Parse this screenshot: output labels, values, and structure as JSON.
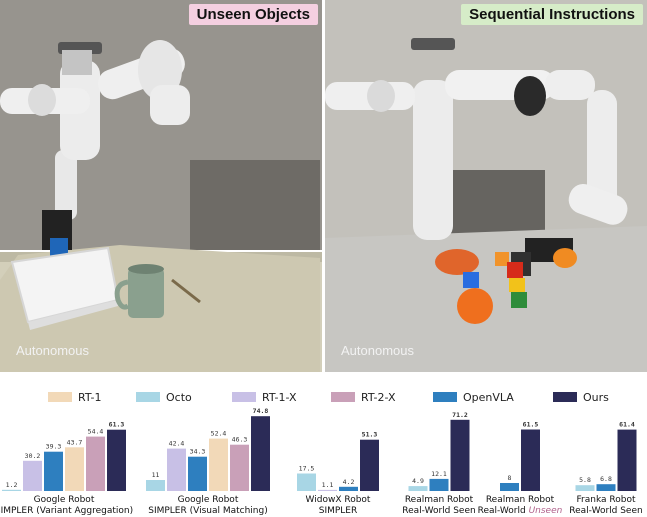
{
  "panels": [
    {
      "badge": "Unseen Objects",
      "caption": "Autonomous"
    },
    {
      "badge": "Sequential Instructions",
      "caption": "Autonomous"
    }
  ],
  "chart_data": {
    "type": "bar",
    "title": "",
    "xlabel": "",
    "ylabel": "",
    "legend_position": "top",
    "series": [
      {
        "name": "RT-1",
        "color": "#f2d9b8"
      },
      {
        "name": "Octo",
        "color": "#a8d6e5"
      },
      {
        "name": "RT-1-X",
        "color": "#c8c0e6"
      },
      {
        "name": "RT-2-X",
        "color": "#c9a0b8"
      },
      {
        "name": "OpenVLA",
        "color": "#2e7fbf"
      },
      {
        "name": "Ours",
        "color": "#2b2b57"
      }
    ],
    "groups": [
      {
        "label_lines": [
          "Google Robot",
          "SIMPLER (Variant Aggregation)"
        ],
        "italic_word": "",
        "bars": [
          {
            "series": "Octo",
            "value": 1.2
          },
          {
            "series": "RT-1-X",
            "value": 30.2
          },
          {
            "series": "OpenVLA",
            "value": 39.3
          },
          {
            "series": "RT-1",
            "value": 43.7
          },
          {
            "series": "RT-2-X",
            "value": 54.4
          },
          {
            "series": "Ours",
            "value": 61.3
          }
        ]
      },
      {
        "label_lines": [
          "Google Robot",
          "SIMPLER (Visual Matching)"
        ],
        "italic_word": "",
        "bars": [
          {
            "series": "Octo",
            "value": 11
          },
          {
            "series": "RT-1-X",
            "value": 42.4
          },
          {
            "series": "OpenVLA",
            "value": 34.3
          },
          {
            "series": "RT-1",
            "value": 52.4
          },
          {
            "series": "RT-2-X",
            "value": 46.3
          },
          {
            "series": "Ours",
            "value": 74.8
          }
        ]
      },
      {
        "label_lines": [
          "WidowX Robot",
          "SIMPLER"
        ],
        "italic_word": "",
        "bars": [
          {
            "series": "Octo",
            "value": 17.5
          },
          {
            "series": "RT-1-X",
            "value": 1.1
          },
          {
            "series": "OpenVLA",
            "value": 4.2
          },
          {
            "series": "Ours",
            "value": 51.3
          }
        ]
      },
      {
        "label_lines": [
          "Realman Robot",
          "Real-World Seen"
        ],
        "italic_word": "",
        "bars": [
          {
            "series": "Octo",
            "value": 4.9
          },
          {
            "series": "OpenVLA",
            "value": 12.1
          },
          {
            "series": "Ours",
            "value": 71.2
          }
        ]
      },
      {
        "label_lines": [
          "Realman Robot",
          "Real-World "
        ],
        "italic_word": "Unseen",
        "bars": [
          {
            "series": "OpenVLA",
            "value": 8.0
          },
          {
            "series": "Ours",
            "value": 61.5
          }
        ]
      },
      {
        "label_lines": [
          "Franka Robot",
          "Real-World Seen"
        ],
        "italic_word": "",
        "bars": [
          {
            "series": "Octo",
            "value": 5.8
          },
          {
            "series": "OpenVLA",
            "value": 6.8
          },
          {
            "series": "Ours",
            "value": 61.4
          }
        ]
      }
    ],
    "ylim": [
      0,
      80
    ]
  }
}
